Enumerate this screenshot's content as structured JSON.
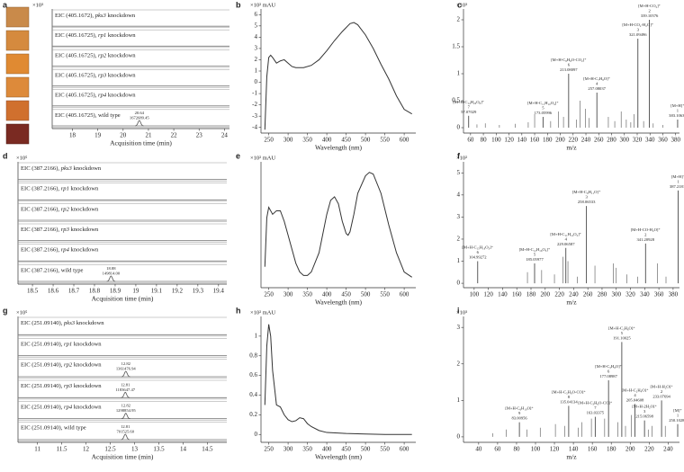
{
  "chart_data": [
    {
      "type": "eic",
      "panel": "a",
      "multiplier": "×10³",
      "xlabel": "Acquisition time (min)",
      "xlim": [
        17.2,
        24.2
      ],
      "xticks": [
        18,
        19,
        20,
        21,
        22,
        23,
        24
      ],
      "traces": [
        {
          "prefix": "EIC (405.1672),",
          "gene": "pks3",
          "suffix": "knockdown"
        },
        {
          "prefix": "EIC (405.16725),",
          "gene": "rp1",
          "suffix": "knockdown"
        },
        {
          "prefix": "EIC (405.16725),",
          "gene": "rp2",
          "suffix": "knockdown"
        },
        {
          "prefix": "EIC (405.16725),",
          "gene": "rp3",
          "suffix": "knockdown"
        },
        {
          "prefix": "EIC (405.16725),",
          "gene": "rp4",
          "suffix": "knockdown"
        },
        {
          "prefix": "EIC (405.16725),",
          "suffix": "wild type",
          "peak": {
            "time": 20.64,
            "area": 1672689.45
          }
        }
      ]
    },
    {
      "type": "line",
      "panel": "b",
      "ylabel": "×10² mAU",
      "xlabel": "Wavelength (nm)",
      "xlim": [
        230,
        630
      ],
      "xticks": [
        250,
        300,
        350,
        400,
        450,
        500,
        550,
        600
      ],
      "ylim": [
        -4.5,
        6.5
      ],
      "yticks": [
        -4,
        -3,
        -2,
        -1,
        0,
        1,
        2,
        3,
        4,
        5,
        6
      ],
      "color": "#333333",
      "x": [
        240,
        245,
        250,
        255,
        260,
        270,
        280,
        290,
        300,
        310,
        320,
        340,
        360,
        380,
        400,
        420,
        440,
        460,
        470,
        480,
        500,
        520,
        540,
        560,
        580,
        600,
        620
      ],
      "values": [
        -4.2,
        0.5,
        2.2,
        2.4,
        2.2,
        1.7,
        1.9,
        2.0,
        1.7,
        1.4,
        1.3,
        1.3,
        1.5,
        2.0,
        2.8,
        3.7,
        4.5,
        5.2,
        5.3,
        5.1,
        4.2,
        3.0,
        1.6,
        0.3,
        -1.2,
        -2.4,
        -2.8
      ]
    },
    {
      "type": "spectrum",
      "panel": "c",
      "multiplier": "×10³",
      "xlabel": "m/z",
      "xlim": [
        49,
        386
      ],
      "xticks": [
        60,
        80,
        100,
        120,
        140,
        160,
        180,
        200,
        220,
        240,
        260,
        280,
        300,
        320,
        340,
        360,
        380
      ],
      "ylim": [
        -0.1,
        2.2
      ],
      "yticks": [
        0,
        0.5,
        1,
        1.5,
        2
      ],
      "color": "#555555",
      "x": [
        70,
        83,
        105,
        130,
        150,
        160,
        185,
        197,
        205,
        225,
        231,
        239,
        245,
        275,
        285,
        295,
        303,
        310,
        315,
        330,
        345,
        360
      ],
      "values": [
        0.06,
        0.08,
        0.05,
        0.07,
        0.1,
        0.25,
        0.12,
        0.3,
        0.2,
        0.15,
        0.5,
        0.35,
        0.18,
        0.2,
        0.12,
        0.3,
        0.15,
        0.1,
        0.25,
        0.12,
        0.08,
        0.05
      ],
      "peaks": [
        {
          "mz": 57.07029,
          "intensity": 0.22,
          "ion": "[M+H-C₁₄H₂₀O₈]⁺",
          "rank": 7
        },
        {
          "mz": 173.05996,
          "intensity": 0.2,
          "ion": "[M+H-C₁₁H₁₀O₄]⁺",
          "rank": 5
        },
        {
          "mz": 213.08097,
          "intensity": 1.0,
          "ion": "[M+H-C₈H₈O-CO₂]⁺",
          "rank": 6
        },
        {
          "mz": 257.08037,
          "intensity": 0.65,
          "ion": "[M+H-C₇H₈O]⁺",
          "rank": 4
        },
        {
          "mz": 321.09496,
          "intensity": 1.65,
          "ion": "[M+H-CO₂-H₂O]⁺",
          "rank": 3
        },
        {
          "mz": 339.10576,
          "intensity": 2.0,
          "ion": "[M+H-CO₂]⁺",
          "rank": 2
        },
        {
          "mz": 383.10637,
          "intensity": 0.15,
          "ion": "[M+H]⁺",
          "rank": 1
        }
      ]
    },
    {
      "type": "eic",
      "panel": "d",
      "multiplier": "×10⁵",
      "xlabel": "Acquisition time (min)",
      "xlim": [
        18.43,
        19.44
      ],
      "xticks": [
        18.5,
        18.6,
        18.7,
        18.8,
        18.9,
        19,
        19.1,
        19.2,
        19.3,
        19.4
      ],
      "traces": [
        {
          "prefix": "EIC (387.2166),",
          "gene": "pks3",
          "suffix": "knockdown"
        },
        {
          "prefix": "EIC (387.2166),",
          "gene": "rp1",
          "suffix": "knockdown"
        },
        {
          "prefix": "EIC (387.2166),",
          "gene": "rp2",
          "suffix": "knockdown"
        },
        {
          "prefix": "EIC (387.2166),",
          "gene": "rp3",
          "suffix": "knockdown"
        },
        {
          "prefix": "EIC (387.2166),",
          "gene": "rp4",
          "suffix": "knockdown"
        },
        {
          "prefix": "EIC (387.2166),",
          "suffix": "wild type",
          "peak": {
            "time": 18.88,
            "area": {
              "value": 149814,
              "label": "149814.00"
            }
          }
        }
      ]
    },
    {
      "type": "line",
      "panel": "e",
      "ylabel": "×10² mAU",
      "xlabel": "Wavelength (nm)",
      "xlim": [
        230,
        630
      ],
      "xticks": [
        250,
        300,
        350,
        400,
        450,
        500,
        550,
        600
      ],
      "ylim": [
        0,
        3.6
      ],
      "color": "#333333",
      "x": [
        240,
        245,
        250,
        260,
        270,
        280,
        290,
        300,
        310,
        320,
        330,
        340,
        350,
        360,
        380,
        400,
        410,
        420,
        430,
        440,
        450,
        455,
        460,
        470,
        480,
        500,
        510,
        520,
        540,
        560,
        580,
        600,
        620
      ],
      "values": [
        0.6,
        2.0,
        2.3,
        2.1,
        2.2,
        2.2,
        1.9,
        1.5,
        1.1,
        0.7,
        0.45,
        0.35,
        0.35,
        0.45,
        1.0,
        2.1,
        2.5,
        2.6,
        2.4,
        1.9,
        1.55,
        1.5,
        1.6,
        2.1,
        2.7,
        3.2,
        3.3,
        3.25,
        2.7,
        1.8,
        1.0,
        0.45,
        0.3
      ]
    },
    {
      "type": "spectrum",
      "panel": "f",
      "multiplier": "×10²",
      "xlabel": "m/z",
      "xlim": [
        85,
        389
      ],
      "xticks": [
        100,
        120,
        140,
        160,
        180,
        200,
        220,
        240,
        260,
        280,
        300,
        320,
        340,
        360,
        380
      ],
      "ylim": [
        -0.2,
        5.5
      ],
      "yticks": [
        0,
        1,
        2,
        3,
        4,
        5
      ],
      "color": "#555555",
      "x": [
        175,
        195,
        213,
        225,
        232,
        245,
        270,
        296,
        300,
        315,
        330,
        358,
        370
      ],
      "values": [
        0.5,
        0.6,
        0.4,
        1.2,
        1.0,
        0.3,
        0.8,
        0.9,
        0.7,
        0.4,
        0.3,
        0.9,
        0.3
      ],
      "peaks": [
        {
          "mz": 104.99272,
          "intensity": 1.0,
          "ion": "[M+H-C₁₅H₁₈O₃]⁺",
          "rank": 6
        },
        {
          "mz": 185.05977,
          "intensity": 0.9,
          "ion": "[M+H-C₁₂H₁₆O₃]⁺",
          "rank": 5
        },
        {
          "mz": 229.06587,
          "intensity": 1.6,
          "ion": "[M+H-C₁₁H₁₄O₂]⁺",
          "rank": 4
        },
        {
          "mz": 258.06533,
          "intensity": 3.5,
          "ion": "[M+H-C₈H₁₁O]⁺",
          "rank": 3
        },
        {
          "mz": 341.20928,
          "intensity": 1.8,
          "ion": "[M+H-CO-H₂O]⁺",
          "rank": 2
        },
        {
          "mz": 387.21811,
          "intensity": 4.2,
          "ion": "[M+H]⁺",
          "rank": 1
        }
      ]
    },
    {
      "type": "eic",
      "panel": "g",
      "multiplier": "×10⁵",
      "xlabel": "Acquisition time (min)",
      "xlim": [
        10.6,
        14.9
      ],
      "xticks": [
        11,
        11.5,
        12,
        12.5,
        13,
        13.5,
        14,
        14.5
      ],
      "traces": [
        {
          "prefix": "EIC (251.09140),",
          "gene": "pks3",
          "suffix": "knockdown"
        },
        {
          "prefix": "EIC (251.09140),",
          "gene": "rp1",
          "suffix": "knockdown"
        },
        {
          "prefix": "EIC (251.09140),",
          "gene": "rp2",
          "suffix": "knockdown",
          "peak": {
            "time": 12.82,
            "area": 1361476.94
          }
        },
        {
          "prefix": "EIC (251.09140),",
          "gene": "rp3",
          "suffix": "knockdown",
          "peak": {
            "time": 12.81,
            "area": 1183647.47
          }
        },
        {
          "prefix": "EIC (251.09140),",
          "gene": "rp4",
          "suffix": "knockdown",
          "peak": {
            "time": 12.82,
            "area": 1298854.95
          }
        },
        {
          "prefix": "EIC (251.09140),",
          "suffix": "wild type",
          "peak": {
            "time": 12.81,
            "area": {
              "value": 701525.6,
              "label": "701525.60"
            }
          }
        }
      ]
    },
    {
      "type": "line",
      "panel": "h",
      "ylabel": "×10² mAU",
      "xlabel": "Wavelength (nm)",
      "xlim": [
        230,
        630
      ],
      "xticks": [
        250,
        300,
        350,
        400,
        450,
        500,
        550,
        600
      ],
      "ylim": [
        -0.08,
        1.2
      ],
      "yticks": [
        0,
        0.2,
        0.4,
        0.6,
        0.8,
        1
      ],
      "color": "#333333",
      "x": [
        240,
        245,
        250,
        255,
        260,
        270,
        280,
        290,
        300,
        310,
        320,
        330,
        340,
        350,
        360,
        380,
        400,
        450,
        500,
        550,
        600,
        620
      ],
      "values": [
        0.3,
        0.9,
        1.12,
        1.0,
        0.65,
        0.3,
        0.28,
        0.2,
        0.15,
        0.13,
        0.14,
        0.17,
        0.16,
        0.11,
        0.08,
        0.04,
        0.02,
        0.01,
        0.005,
        0,
        0,
        0
      ]
    },
    {
      "type": "spectrum",
      "panel": "i",
      "multiplier": "×10³",
      "xlabel": "m/z",
      "xlim": [
        24,
        252
      ],
      "xticks": [
        40,
        60,
        80,
        100,
        120,
        140,
        160,
        180,
        200,
        220,
        240
      ],
      "ylim": [
        -0.15,
        3.3
      ],
      "yticks": [
        0,
        1,
        2,
        3
      ],
      "color": "#555555",
      "x": [
        55,
        69,
        91,
        105,
        121,
        131,
        145,
        149,
        159,
        173,
        187,
        195,
        201,
        219,
        223,
        237
      ],
      "values": [
        0.1,
        0.2,
        0.2,
        0.25,
        0.35,
        0.3,
        0.25,
        0.4,
        0.5,
        0.5,
        0.4,
        0.3,
        0.6,
        0.2,
        0.3,
        0.3
      ],
      "peaks": [
        {
          "mz": 83.00956,
          "intensity": 0.4,
          "ion": "[M+H-C₆H₁₀O]⁺",
          "rank": 9
        },
        {
          "mz": 135.04134,
          "intensity": 0.85,
          "ion": "[M+H-C₅H₈O-CO]⁺",
          "rank": 8
        },
        {
          "mz": 163.03375,
          "intensity": 0.55,
          "ion": "[M+H-C₃H₆O-CO]⁺",
          "rank": 7
        },
        {
          "mz": 177.08987,
          "intensity": 1.55,
          "ion": "[M+H-C₃H₈O]⁺",
          "rank": 6
        },
        {
          "mz": 191.10025,
          "intensity": 2.6,
          "ion": "[M+H-C₃H₆O]⁺",
          "rank": 5
        },
        {
          "mz": 205.04608,
          "intensity": 0.9,
          "ion": "[M+H-C₂H₄O]⁺",
          "rank": 4
        },
        {
          "mz": 215.06598,
          "intensity": 0.45,
          "ion": "[M+H-2H₂O]⁺",
          "rank": 3
        },
        {
          "mz": 233.07694,
          "intensity": 1.0,
          "ion": "[M+H-H₂O]⁺",
          "rank": 2
        },
        {
          "mz": 250.10287,
          "intensity": 0.35,
          "ion": "[M]⁺",
          "rank": 1
        }
      ]
    }
  ]
}
